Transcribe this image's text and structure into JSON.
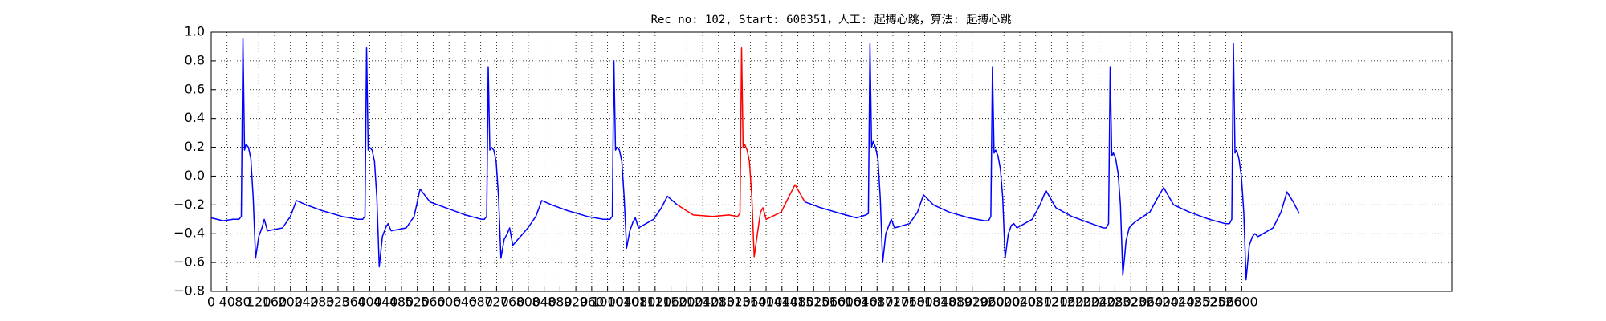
{
  "chart_data": {
    "type": "line",
    "title": "Rec_no: 102, Start: 608351，人工: 起搏心跳，算法: 起搏心跳",
    "x": [
      0,
      30,
      55,
      70,
      76,
      80,
      84,
      88,
      94,
      100,
      106,
      112,
      120,
      128,
      134,
      142,
      180,
      200,
      215,
      240,
      280,
      330,
      370,
      382,
      388,
      392,
      396,
      400,
      406,
      412,
      418,
      424,
      432,
      440,
      446,
      454,
      492,
      512,
      527,
      552,
      592,
      642,
      682,
      689,
      695,
      699,
      703,
      707,
      713,
      719,
      725,
      731,
      739,
      747,
      753,
      761,
      799,
      819,
      834,
      859,
      899,
      949,
      989,
      1006,
      1012,
      1016,
      1020,
      1024,
      1030,
      1036,
      1042,
      1048,
      1056,
      1064,
      1070,
      1078,
      1116,
      1136,
      1151,
      1176,
      1216,
      1266,
      1306,
      1328,
      1334,
      1338,
      1342,
      1346,
      1352,
      1358,
      1364,
      1370,
      1378,
      1386,
      1392,
      1400,
      1438,
      1458,
      1473,
      1498,
      1538,
      1588,
      1628,
      1652,
      1658,
      1662,
      1666,
      1670,
      1676,
      1682,
      1688,
      1694,
      1702,
      1710,
      1716,
      1724,
      1762,
      1782,
      1797,
      1822,
      1862,
      1912,
      1952,
      1961,
      1967,
      1971,
      1975,
      1979,
      1985,
      1991,
      1997,
      2003,
      2011,
      2019,
      2025,
      2033,
      2071,
      2091,
      2106,
      2131,
      2171,
      2221,
      2251,
      2258,
      2264,
      2268,
      2272,
      2276,
      2282,
      2288,
      2294,
      2300,
      2308,
      2316,
      2322,
      2330,
      2368,
      2388,
      2403,
      2428,
      2468,
      2518,
      2558,
      2569,
      2575,
      2579,
      2583,
      2587,
      2593,
      2599,
      2605,
      2611,
      2619,
      2627,
      2633,
      2641,
      2679,
      2699,
      2714,
      2730,
      2745
    ],
    "series": [
      {
        "color": "#0000ff",
        "values": [
          -0.29,
          -0.31,
          -0.3,
          -0.3,
          -0.28,
          0.96,
          0.18,
          0.22,
          0.2,
          0.12,
          -0.15,
          -0.57,
          -0.42,
          -0.36,
          -0.3,
          -0.38,
          -0.36,
          -0.28,
          -0.17,
          -0.2,
          -0.24,
          -0.28,
          -0.3,
          -0.3,
          -0.28,
          0.89,
          0.18,
          0.2,
          0.18,
          0.1,
          -0.15,
          -0.63,
          -0.42,
          -0.36,
          -0.33,
          -0.38,
          -0.36,
          -0.28,
          -0.09,
          -0.18,
          -0.22,
          -0.27,
          -0.3,
          -0.3,
          -0.28,
          0.76,
          0.18,
          0.2,
          0.18,
          0.1,
          -0.15,
          -0.57,
          -0.44,
          -0.4,
          -0.36,
          -0.48,
          -0.36,
          -0.28,
          -0.17,
          -0.2,
          -0.24,
          -0.28,
          -0.3,
          -0.3,
          -0.28,
          0.8,
          0.18,
          0.2,
          0.18,
          0.1,
          -0.15,
          -0.5,
          -0.38,
          -0.32,
          -0.29,
          -0.36,
          -0.3,
          -0.22,
          -0.14,
          -0.2,
          null,
          null,
          null,
          null,
          null,
          null,
          null,
          null,
          null,
          null,
          null,
          null,
          null,
          null,
          null,
          null,
          null,
          null,
          null,
          -0.18,
          -0.22,
          -0.26,
          -0.29,
          -0.27,
          -0.26,
          0.92,
          0.2,
          0.24,
          0.2,
          0.12,
          -0.15,
          -0.6,
          -0.4,
          -0.34,
          -0.3,
          -0.36,
          -0.33,
          -0.25,
          -0.13,
          -0.2,
          -0.25,
          -0.29,
          -0.31,
          -0.31,
          -0.28,
          0.76,
          0.16,
          0.18,
          0.14,
          0.05,
          -0.15,
          -0.57,
          -0.4,
          -0.34,
          -0.33,
          -0.36,
          -0.3,
          -0.2,
          -0.1,
          -0.22,
          -0.28,
          -0.33,
          -0.36,
          -0.36,
          -0.33,
          0.76,
          0.14,
          0.16,
          0.12,
          0.02,
          -0.2,
          -0.69,
          -0.45,
          -0.36,
          -0.34,
          -0.32,
          -0.25,
          -0.15,
          -0.08,
          -0.2,
          -0.25,
          -0.3,
          -0.33,
          -0.33,
          -0.3,
          0.92,
          0.16,
          0.18,
          0.12,
          0.0,
          -0.25,
          -0.72,
          -0.48,
          -0.42,
          -0.4,
          -0.42,
          -0.36,
          -0.25,
          -0.11,
          -0.18,
          -0.26
        ]
      },
      {
        "color": "#ff0000",
        "x": [
          1176,
          1216,
          1266,
          1306,
          1328,
          1334,
          1338,
          1342,
          1346,
          1352,
          1358,
          1364,
          1370,
          1378,
          1386,
          1392,
          1400,
          1438,
          1458,
          1473,
          1498
        ],
        "values": [
          -0.2,
          -0.27,
          -0.28,
          -0.27,
          -0.28,
          -0.26,
          0.89,
          0.2,
          0.22,
          0.18,
          0.1,
          -0.15,
          -0.56,
          -0.4,
          -0.25,
          -0.22,
          -0.3,
          -0.25,
          -0.14,
          -0.06,
          -0.18
        ]
      }
    ],
    "xlim": [
      0,
      3130
    ],
    "xticks": [
      0,
      40,
      80,
      120,
      160,
      200,
      240,
      280,
      320,
      360,
      400,
      440,
      480,
      520,
      560,
      600,
      640,
      680,
      720,
      760,
      800,
      840,
      880,
      920,
      960,
      1000,
      1040,
      1080,
      1120,
      1160,
      1200,
      1240,
      1280,
      1320,
      1360,
      1400,
      1440,
      1480,
      1520,
      1560,
      1600,
      1640,
      1680,
      1720,
      1760,
      1800,
      1840,
      1880,
      1920,
      1960,
      2000,
      2040,
      2080,
      2120,
      2160,
      2200,
      2240,
      2280,
      2320,
      2360,
      2400,
      2440,
      2480,
      2520,
      2560,
      2600
    ],
    "ylim": [
      -0.8,
      1.0
    ],
    "yticks": [
      {
        "value": -0.8,
        "label": "−0.8"
      },
      {
        "value": -0.6,
        "label": "−0.6"
      },
      {
        "value": -0.4,
        "label": "−0.4"
      },
      {
        "value": -0.2,
        "label": "−0.2"
      },
      {
        "value": 0,
        "label": "0.0"
      },
      {
        "value": 0.2,
        "label": "0.2"
      },
      {
        "value": 0.4,
        "label": "0.4"
      },
      {
        "value": 0.6,
        "label": "0.6"
      },
      {
        "value": 0.8,
        "label": "0.8"
      },
      {
        "value": 1.0,
        "label": "1.0"
      }
    ],
    "grid": true
  }
}
